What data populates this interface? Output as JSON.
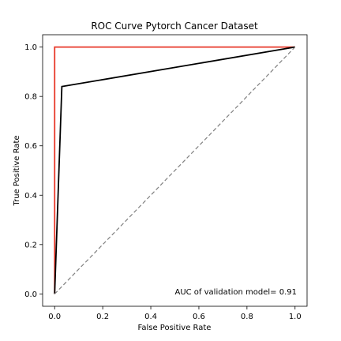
{
  "chart_data": {
    "type": "line",
    "title": "ROC Curve Pytorch Cancer Dataset",
    "xlabel": "False Positive Rate",
    "ylabel": "True Positive Rate",
    "xlim": [
      -0.05,
      1.05
    ],
    "ylim": [
      -0.05,
      1.05
    ],
    "xticks": [
      "0.0",
      "0.2",
      "0.4",
      "0.6",
      "0.8",
      "1.0"
    ],
    "yticks": [
      "0.0",
      "0.2",
      "0.4",
      "0.6",
      "0.8",
      "1.0"
    ],
    "grid": false,
    "series": [
      {
        "color": "#e8392a",
        "style": "solid",
        "x": [
          0.0,
          0.0,
          1.0
        ],
        "y": [
          0.0,
          1.0,
          1.0
        ]
      },
      {
        "color": "#000000",
        "style": "solid",
        "x": [
          0.0,
          0.03,
          1.0
        ],
        "y": [
          0.0,
          0.84,
          1.0
        ]
      },
      {
        "color": "#808080",
        "style": "dashed",
        "x": [
          0.0,
          1.0
        ],
        "y": [
          0.0,
          1.0
        ]
      }
    ],
    "annotation": "AUC of validation model= 0.91"
  }
}
